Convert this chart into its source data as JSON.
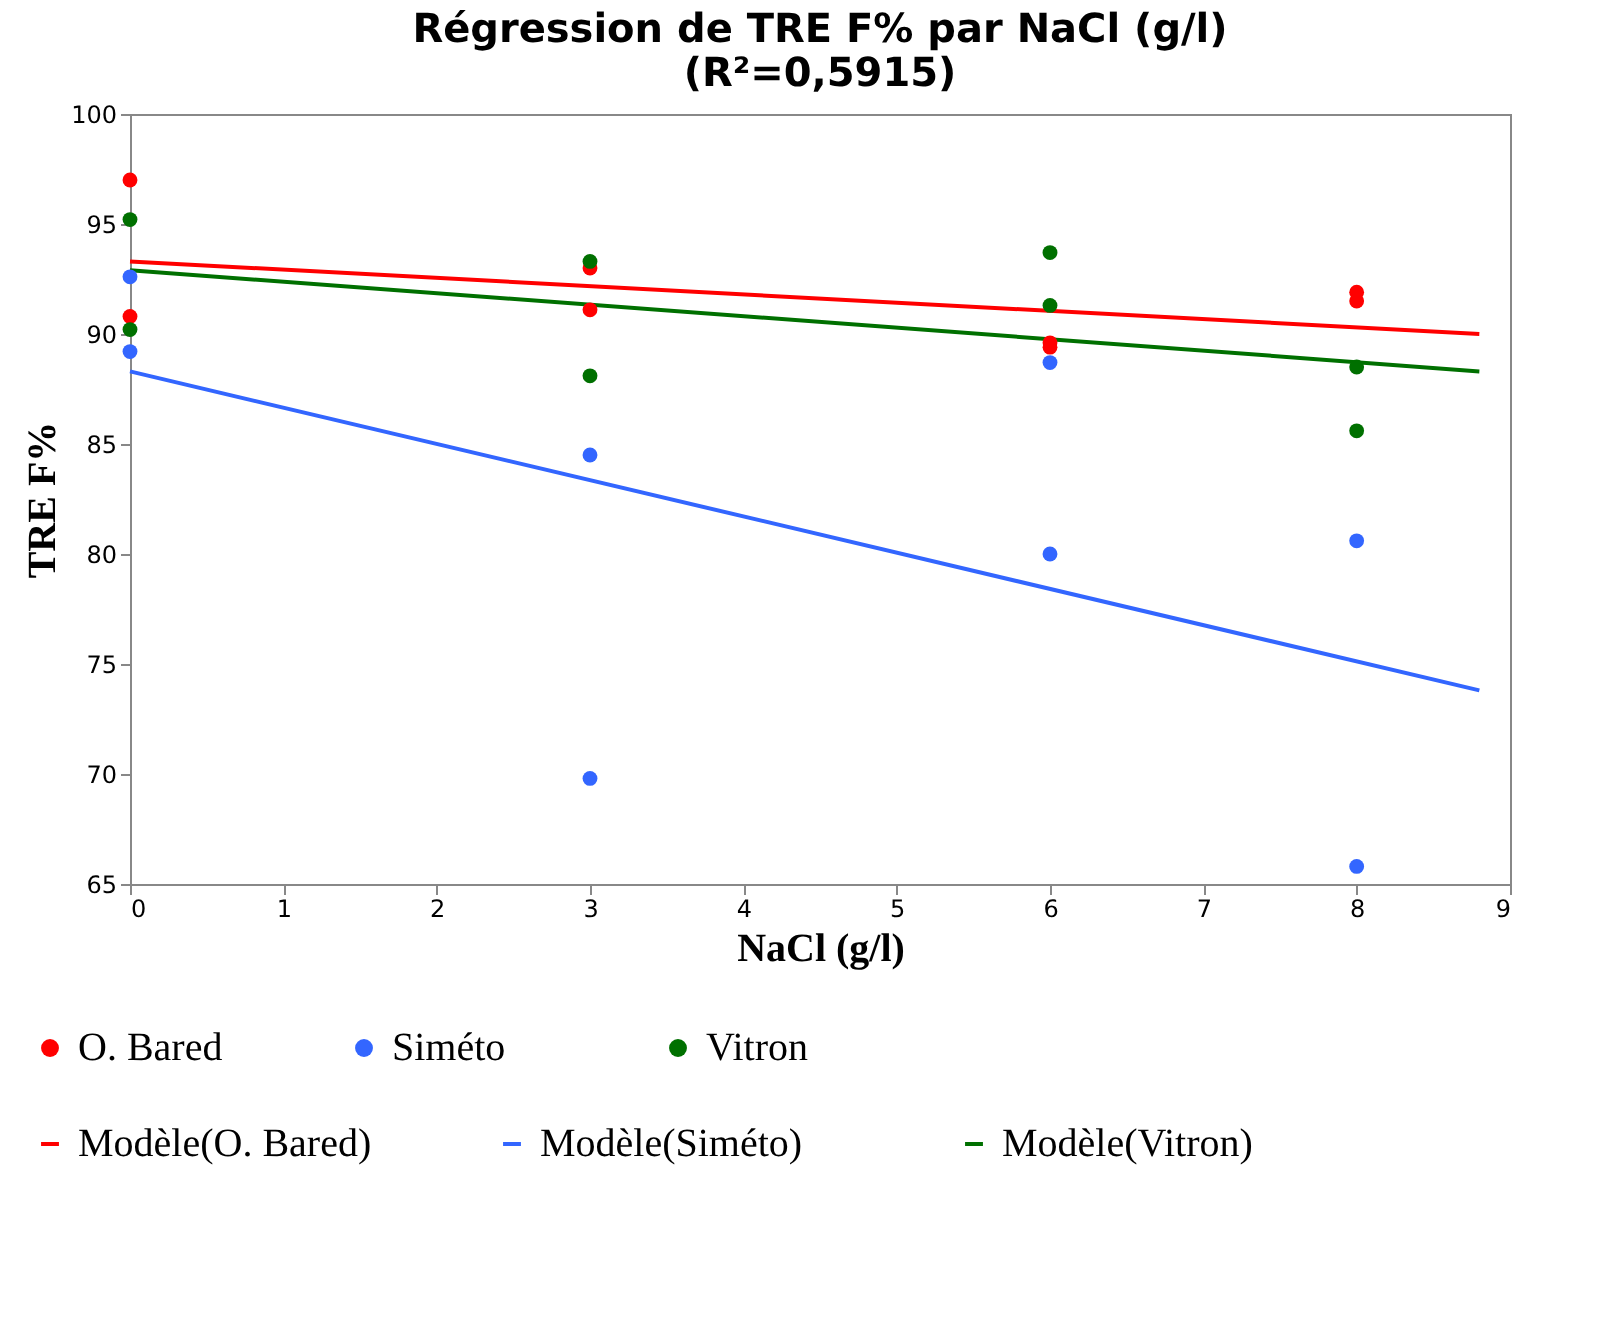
{
  "chart_data": {
    "type": "scatter",
    "title": "Régression de TRE F% par NaCl (g/l)\n(R²=0,5915)",
    "xlabel": "NaCl (g/l)",
    "ylabel": "TRE F%",
    "xlim": [
      0,
      9
    ],
    "xticks": [
      0,
      1,
      2,
      3,
      4,
      5,
      6,
      7,
      8,
      9
    ],
    "ylim": [
      65,
      100
    ],
    "yticks": [
      65,
      70,
      75,
      80,
      85,
      90,
      95,
      100
    ],
    "grid": false,
    "legend": "bottom",
    "series": [
      {
        "name": "O. Bared",
        "marker": "circle",
        "color": "#ff0000",
        "x": [
          0,
          0,
          3,
          3,
          6,
          6,
          8,
          8
        ],
        "values": [
          97.0,
          90.8,
          93.0,
          91.1,
          89.6,
          89.4,
          91.9,
          91.5
        ]
      },
      {
        "name": "Siméto",
        "marker": "circle",
        "color": "#3366ff",
        "x": [
          0,
          0,
          3,
          3,
          6,
          6,
          8,
          8
        ],
        "values": [
          92.6,
          89.2,
          84.5,
          69.8,
          88.7,
          80.0,
          80.6,
          65.8
        ]
      },
      {
        "name": "Vitron",
        "marker": "circle",
        "color": "#007000",
        "x": [
          0,
          0,
          3,
          3,
          6,
          6,
          8,
          8
        ],
        "values": [
          95.2,
          90.2,
          93.3,
          88.1,
          93.7,
          91.3,
          88.5,
          85.6
        ]
      },
      {
        "name": "Modèle(O. Bared)",
        "type": "line",
        "color": "#ff0000",
        "x": [
          0,
          8.8
        ],
        "values": [
          93.3,
          90.0
        ]
      },
      {
        "name": "Modèle(Siméto)",
        "type": "line",
        "color": "#3366ff",
        "x": [
          0,
          8.8
        ],
        "values": [
          88.3,
          73.8
        ]
      },
      {
        "name": "Modèle(Vitron)",
        "type": "line",
        "color": "#007000",
        "x": [
          0,
          8.8
        ],
        "values": [
          92.9,
          88.3
        ]
      }
    ]
  }
}
